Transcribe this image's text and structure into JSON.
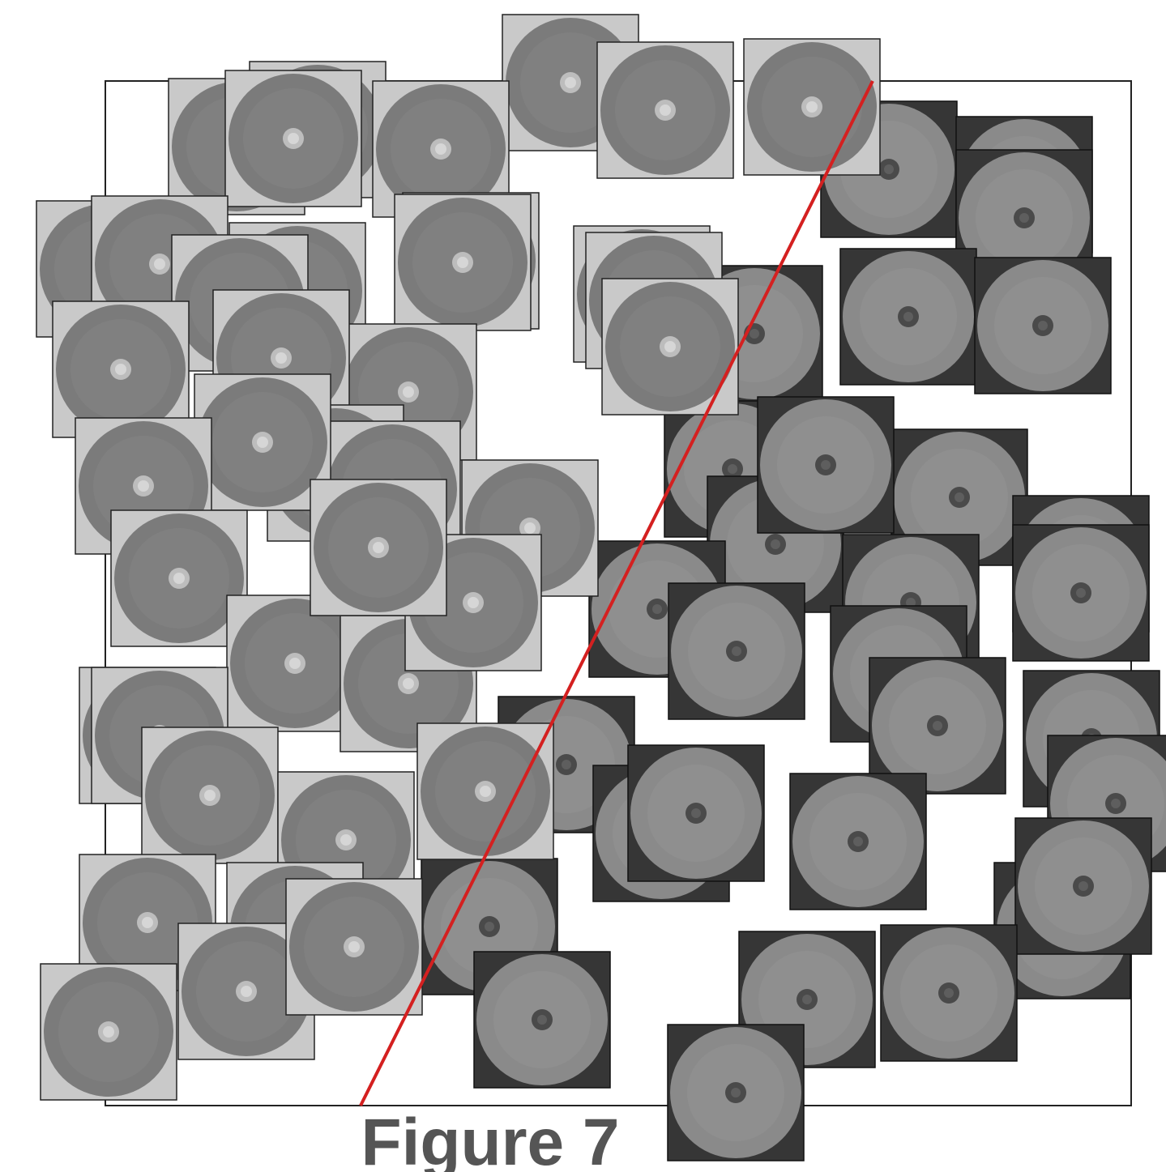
{
  "caption": "Figure 7"
}
